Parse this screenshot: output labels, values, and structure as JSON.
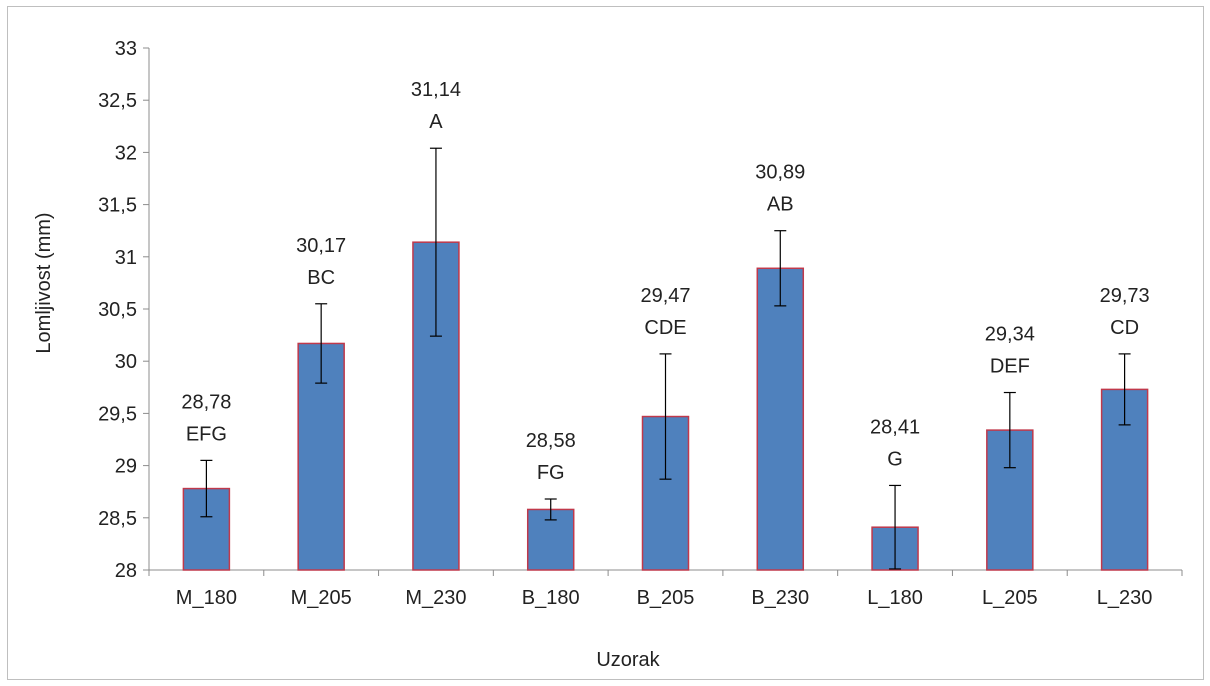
{
  "chart_data": {
    "type": "bar",
    "title": "",
    "xlabel": "Uzorak",
    "ylabel": "Lomljivost (mm)",
    "ylim": [
      28,
      33
    ],
    "y_ticks": [
      "28",
      "28,5",
      "29",
      "29,5",
      "30",
      "30,5",
      "31",
      "31,5",
      "32",
      "32,5",
      "33"
    ],
    "y_tick_values": [
      28,
      28.5,
      29,
      29.5,
      30,
      30.5,
      31,
      31.5,
      32,
      32.5,
      33
    ],
    "categories": [
      "M_180",
      "M_205",
      "M_230",
      "B_180",
      "B_205",
      "B_230",
      "L_180",
      "L_205",
      "L_230"
    ],
    "values": [
      28.78,
      30.17,
      31.14,
      28.58,
      29.47,
      30.89,
      28.41,
      29.34,
      29.73
    ],
    "value_labels": [
      "28,78",
      "30,17",
      "31,14",
      "28,58",
      "29,47",
      "30,89",
      "28,41",
      "29,34",
      "29,73"
    ],
    "group_letters": [
      "EFG",
      "BC",
      "A",
      "FG",
      "CDE",
      "AB",
      "G",
      "DEF",
      "CD"
    ],
    "error": [
      0.27,
      0.38,
      0.9,
      0.1,
      0.6,
      0.36,
      0.4,
      0.36,
      0.34
    ],
    "grid": false,
    "legend": "none",
    "colors": {
      "bar_fill": "#4f81bd",
      "bar_stroke": "#c0394b",
      "axis": "#8c8c8c",
      "error_bar": "#000000"
    }
  }
}
